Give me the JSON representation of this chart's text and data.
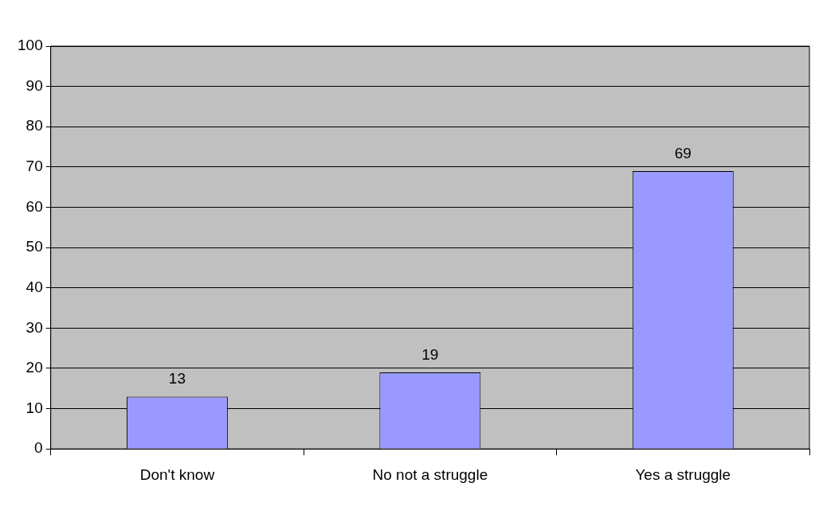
{
  "chart_data": {
    "type": "bar",
    "categories": [
      "Don't know",
      "No not a struggle",
      "Yes a struggle"
    ],
    "values": [
      13,
      19,
      69
    ],
    "color": "#9999ff",
    "ylim": [
      0,
      100
    ],
    "yticks": [
      0,
      10,
      20,
      30,
      40,
      50,
      60,
      70,
      80,
      90,
      100
    ],
    "grid": "y",
    "data_labels": true,
    "legend": false
  }
}
